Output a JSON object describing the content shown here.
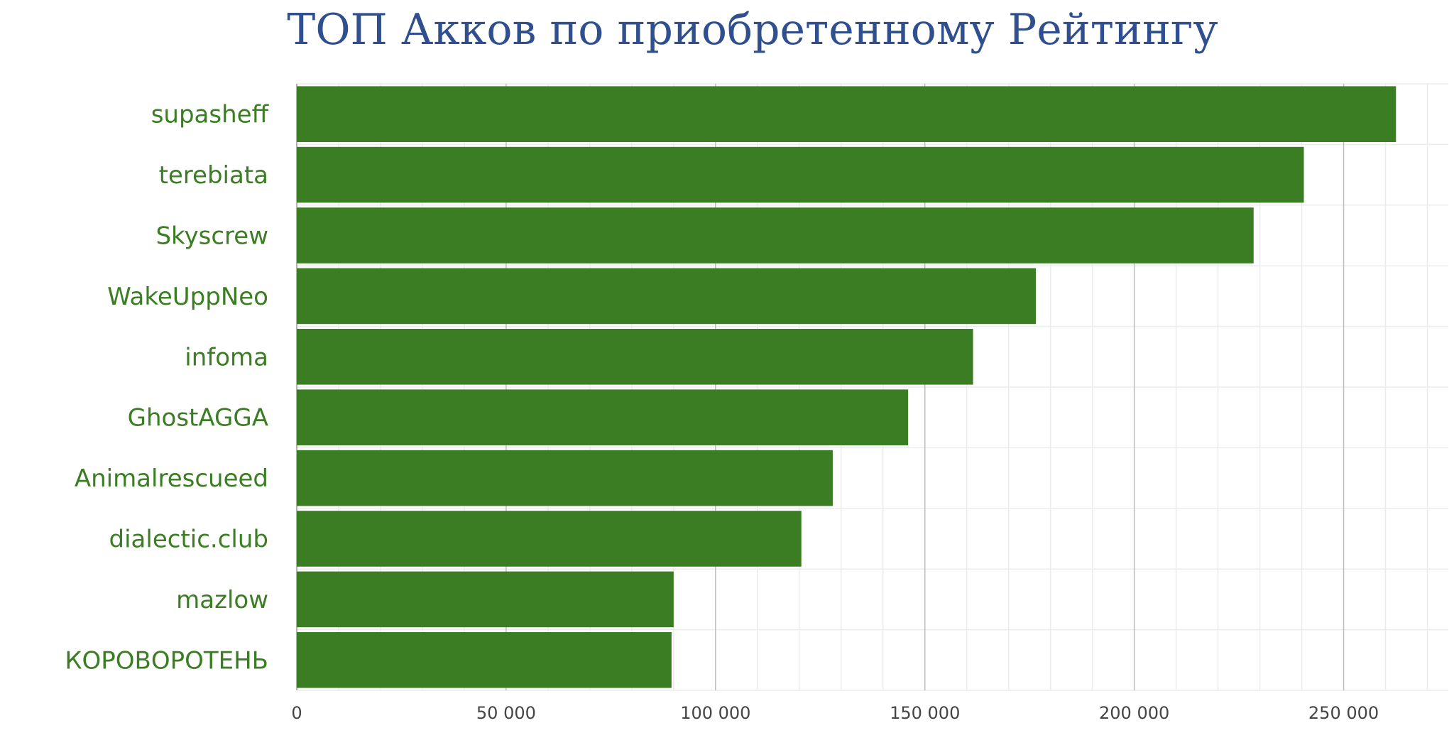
{
  "chart_data": {
    "type": "bar",
    "orientation": "horizontal",
    "title": "ТОП Акков по приобретенному Рейтингу",
    "categories": [
      "supasheff",
      "terebiata",
      "Skyscrew",
      "WakeUppNeo",
      "infoma",
      "GhostAGGA",
      "Animalrescueed",
      "dialectic.club",
      "mazlow",
      "КОРОВОРОТЕНЬ"
    ],
    "values": [
      262500,
      240500,
      228500,
      176500,
      161500,
      146000,
      128000,
      120500,
      90000,
      89500
    ],
    "xlim": [
      0,
      275000
    ],
    "x_ticks": [
      0,
      50000,
      100000,
      150000,
      200000,
      250000
    ],
    "x_tick_labels": [
      "0",
      "50 000",
      "100 000",
      "150 000",
      "200 000",
      "250 000"
    ],
    "grid": true,
    "legend": "none",
    "bar_color": "#3a7d22",
    "label_color": "#3a7d22",
    "title_color": "#2f4f8f"
  }
}
